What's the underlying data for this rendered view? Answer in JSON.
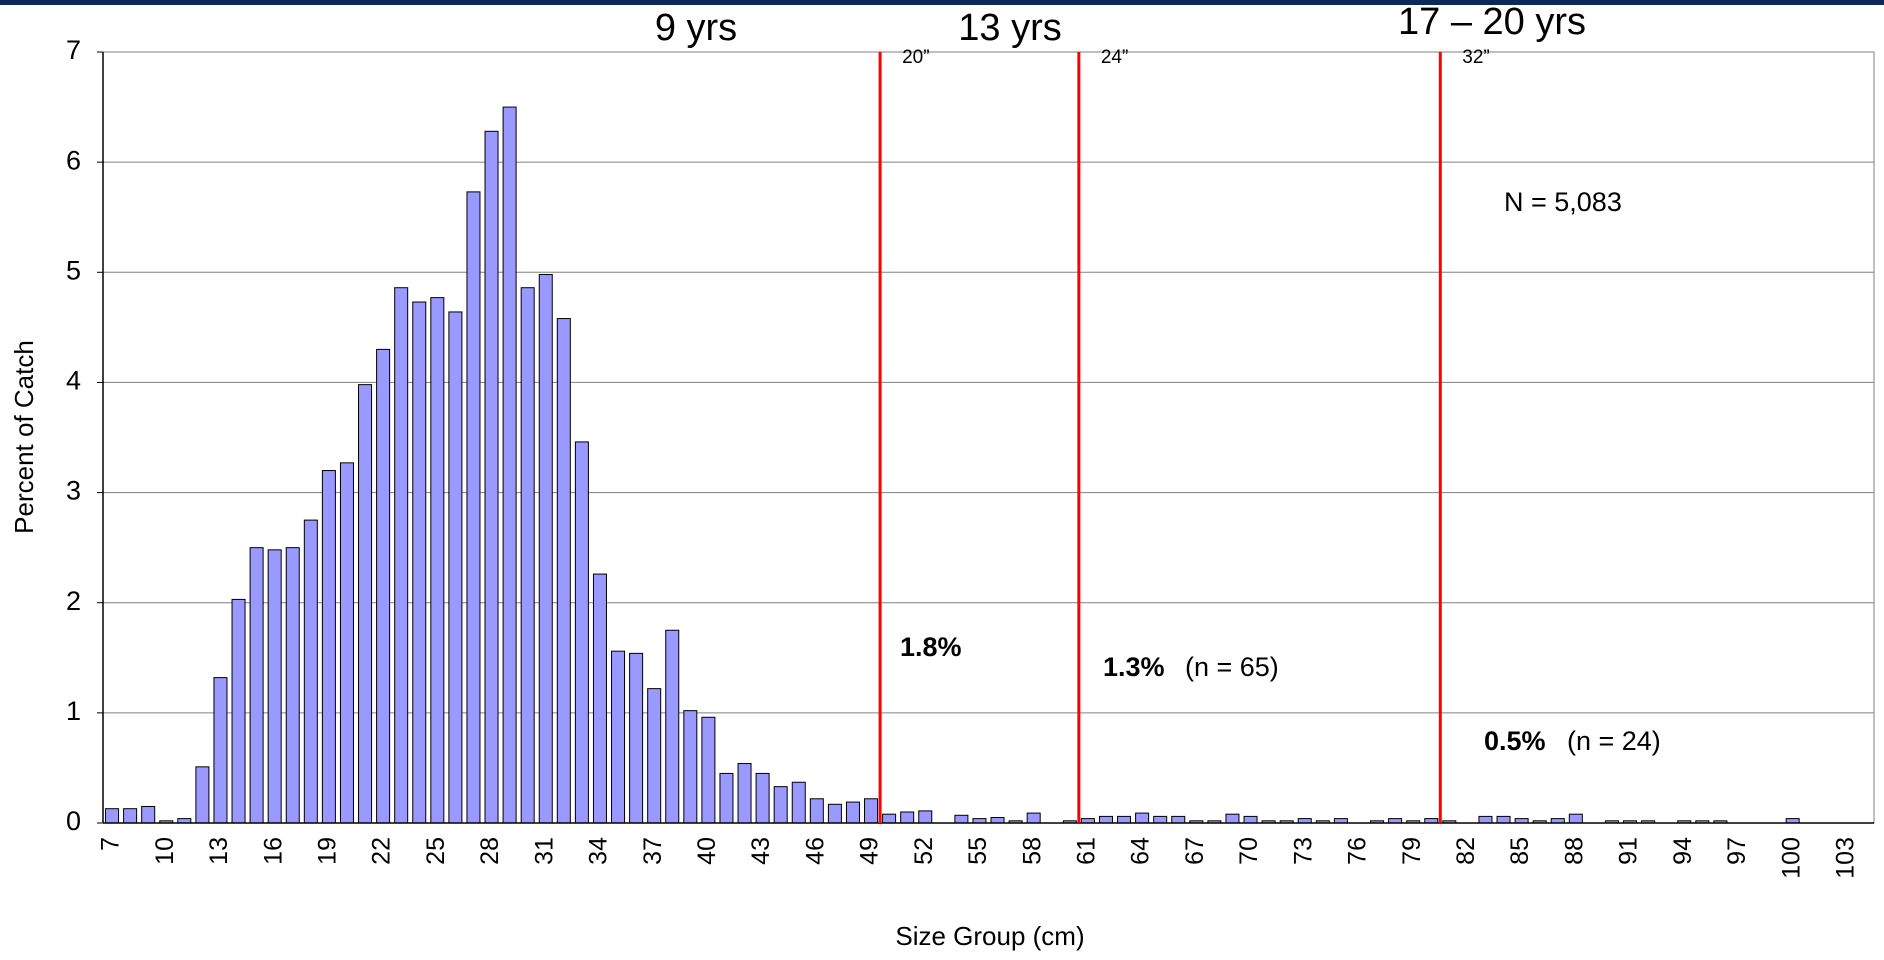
{
  "chart_data": {
    "type": "bar",
    "x_label": "Size Group (cm)",
    "y_label": "Percent of Catch",
    "color": "#9999ff",
    "grid": true,
    "ylim": [
      0,
      7
    ],
    "yticks": [
      0,
      1,
      2,
      3,
      4,
      5,
      6,
      7
    ],
    "categories": [
      7,
      null,
      null,
      10,
      null,
      null,
      13,
      null,
      null,
      16,
      null,
      null,
      19,
      null,
      null,
      22,
      null,
      null,
      25,
      null,
      null,
      28,
      null,
      null,
      31,
      null,
      null,
      34,
      null,
      null,
      37,
      null,
      null,
      40,
      null,
      null,
      43,
      null,
      null,
      46,
      null,
      null,
      49,
      null,
      null,
      52,
      null,
      null,
      55,
      null,
      null,
      58,
      null,
      null,
      61,
      null,
      null,
      64,
      null,
      null,
      67,
      null,
      null,
      70,
      null,
      null,
      73,
      null,
      null,
      76,
      null,
      null,
      79,
      null,
      null,
      82,
      null,
      null,
      85,
      null,
      null,
      88,
      null,
      null,
      91,
      null,
      null,
      94,
      null,
      null,
      97,
      null,
      null,
      100,
      null,
      null,
      103,
      null
    ],
    "values": [
      0.13,
      0.13,
      0.15,
      0.02,
      0.04,
      0.51,
      1.32,
      2.03,
      2.5,
      2.48,
      2.5,
      2.75,
      3.2,
      3.27,
      3.98,
      4.3,
      4.86,
      4.73,
      4.77,
      4.64,
      5.73,
      6.28,
      6.5,
      4.86,
      4.98,
      4.58,
      3.46,
      2.26,
      1.56,
      1.54,
      1.22,
      1.75,
      1.02,
      0.96,
      0.45,
      0.54,
      0.45,
      0.33,
      0.37,
      0.22,
      0.17,
      0.19,
      0.22,
      0.08,
      0.1,
      0.11,
      0,
      0.07,
      0.04,
      0.05,
      0.02,
      0.09,
      0,
      0.02,
      0.04,
      0.06,
      0.06,
      0.09,
      0.06,
      0.06,
      0.02,
      0.02,
      0.08,
      0.06,
      0.02,
      0.02,
      0.04,
      0.02,
      0.04,
      0,
      0.02,
      0.04,
      0.02,
      0.04,
      0.02,
      0,
      0.06,
      0.06,
      0.04,
      0.02,
      0.04,
      0.08,
      0,
      0.02,
      0.02,
      0.02,
      0,
      0.02,
      0.02,
      0.02,
      0,
      0,
      0,
      0.04,
      0,
      0,
      0,
      0
    ],
    "reference_lines": [
      {
        "label": "20”",
        "x": 49.5,
        "color": "#ff0000"
      },
      {
        "label": "24”",
        "x": 60.5,
        "color": "#ff0000"
      },
      {
        "label": "32”",
        "x": 80.5,
        "color": "#ff0000"
      }
    ],
    "annotations": {
      "ages": [
        "9 yrs",
        "13 yrs",
        "17 – 20 yrs"
      ],
      "ages_color": "#009900",
      "n_total": "N = 5,083",
      "shares": [
        {
          "pct": "1.8%"
        },
        {
          "pct": "1.3%",
          "n": "(n = 65)"
        },
        {
          "pct": "0.5%",
          "n": "(n = 24)"
        }
      ]
    }
  }
}
